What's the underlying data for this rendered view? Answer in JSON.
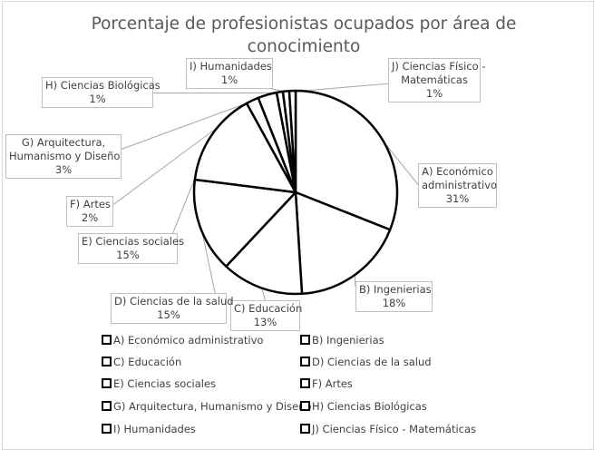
{
  "chart_data": {
    "type": "pie",
    "title": "Porcentaje de profesionistas ocupados por área de conocimiento",
    "categories": [
      "A) Económico administrativo",
      "B) Ingenierias",
      "C) Educación",
      "D) Ciencias de la salud",
      "E) Ciencias sociales",
      "F) Artes",
      "G) Arquitectura, Humanismo y Diseño",
      "H) Ciencias Biológicas",
      "I) Humanidades",
      "J) Ciencias Físico - Matemáticas"
    ],
    "values": [
      31,
      18,
      13,
      15,
      15,
      2,
      3,
      1,
      1,
      1
    ],
    "data_labels": [
      {
        "lines": [
          "A) Económico",
          "administrativo",
          "31%"
        ]
      },
      {
        "lines": [
          "B) Ingenierias",
          "18%"
        ]
      },
      {
        "lines": [
          "C) Educación",
          "13%"
        ]
      },
      {
        "lines": [
          "D) Ciencias de la salud",
          "15%"
        ]
      },
      {
        "lines": [
          "E) Ciencias sociales",
          "15%"
        ]
      },
      {
        "lines": [
          "F) Artes",
          "2%"
        ]
      },
      {
        "lines": [
          "G) Arquitectura,",
          "Humanismo y Diseño",
          "3%"
        ]
      },
      {
        "lines": [
          "H) Ciencias Biológicas",
          "1%"
        ]
      },
      {
        "lines": [
          "I) Humanidades",
          "1%"
        ]
      },
      {
        "lines": [
          "J) Ciencias Físico -",
          "Matemáticas",
          "1%"
        ]
      }
    ],
    "legend": {
      "position": "bottom",
      "entries": [
        "A) Económico administrativo",
        "B) Ingenierias",
        "C) Educación",
        "D) Ciencias de la salud",
        "E) Ciencias sociales",
        "F) Artes",
        "G) Arquitectura, Humanismo y Diseño",
        "H) Ciencias Biológicas",
        "I) Humanidades",
        "J) Ciencias Físico - Matemáticas"
      ]
    },
    "colors": {
      "slice_fill": "#ffffff",
      "slice_stroke": "#000000",
      "leader_line": "#a6a6a6",
      "text": "#404040",
      "title": "#595959"
    }
  }
}
